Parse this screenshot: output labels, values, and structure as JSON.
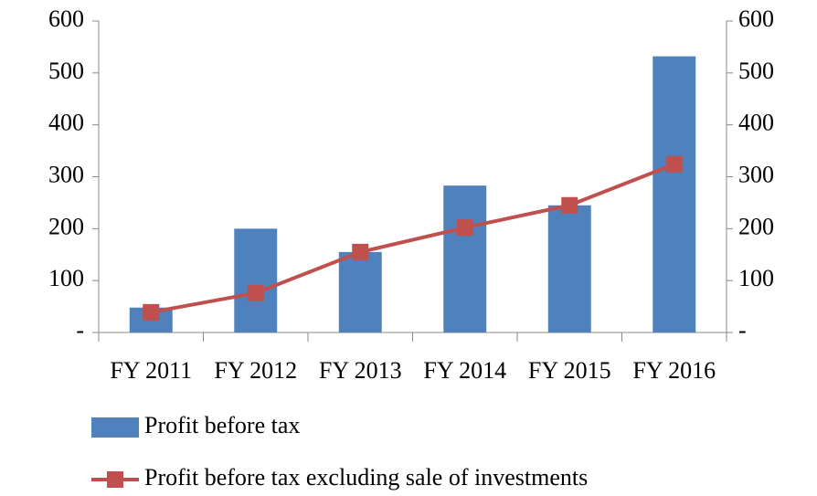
{
  "chart_data": {
    "type": "combo",
    "categories": [
      "FY 2011",
      "FY 2012",
      "FY 2013",
      "FY 2014",
      "FY 2015",
      "FY 2016"
    ],
    "series": [
      {
        "name": "Profit before tax",
        "type": "bar",
        "color": "#4f81bd",
        "values": [
          48,
          200,
          155,
          283,
          245,
          532
        ]
      },
      {
        "name": "Profit before tax excluding sale of investments",
        "type": "line",
        "axis": "y2",
        "color": "#c0504d",
        "values": [
          39,
          76,
          155,
          202,
          245,
          324
        ]
      }
    ],
    "ylim": [
      0,
      600
    ],
    "yticks": [
      {
        "value": 0,
        "label": "-"
      },
      100,
      200,
      300,
      400,
      500,
      600
    ],
    "y2lim": [
      0,
      600
    ],
    "y2ticks": [
      {
        "value": 0,
        "label": "-"
      },
      100,
      200,
      300,
      400,
      500,
      600
    ],
    "grid": false,
    "legend": "bottom"
  }
}
